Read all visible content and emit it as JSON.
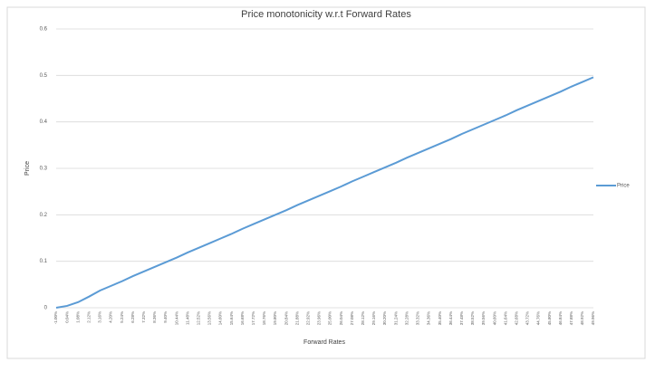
{
  "chart_data": {
    "type": "line",
    "title": "Price monotonicity w.r.t Forward Rates",
    "x_label": "Forward Rates",
    "y_label": "Price",
    "categories": [
      "-1.00%",
      "0.04%",
      "1.08%",
      "2.12%",
      "3.16%",
      "4.20%",
      "5.24%",
      "6.28%",
      "7.32%",
      "8.36%",
      "9.40%",
      "10.44%",
      "11.48%",
      "12.52%",
      "13.56%",
      "14.60%",
      "15.64%",
      "16.68%",
      "17.72%",
      "18.76%",
      "19.80%",
      "20.84%",
      "21.88%",
      "22.92%",
      "23.96%",
      "25.00%",
      "26.04%",
      "27.08%",
      "28.12%",
      "29.16%",
      "30.20%",
      "31.24%",
      "32.28%",
      "33.32%",
      "34.36%",
      "35.40%",
      "36.44%",
      "37.48%",
      "38.52%",
      "39.56%",
      "40.60%",
      "41.64%",
      "42.68%",
      "43.72%",
      "44.76%",
      "45.80%",
      "46.84%",
      "47.88%",
      "48.92%",
      "49.96%"
    ],
    "series": [
      {
        "name": "Price",
        "color": "#5b9bd5",
        "values": [
          0,
          0.004,
          0.012,
          0.024,
          0.037,
          0.047,
          0.057,
          0.068,
          0.078,
          0.088,
          0.098,
          0.108,
          0.119,
          0.129,
          0.139,
          0.149,
          0.159,
          0.17,
          0.18,
          0.19,
          0.2,
          0.21,
          0.221,
          0.231,
          0.241,
          0.251,
          0.261,
          0.272,
          0.282,
          0.292,
          0.302,
          0.312,
          0.323,
          0.333,
          0.343,
          0.353,
          0.363,
          0.374,
          0.384,
          0.394,
          0.404,
          0.414,
          0.425,
          0.435,
          0.445,
          0.455,
          0.465,
          0.476,
          0.486,
          0.496
        ]
      }
    ],
    "ylim": [
      0,
      0.6
    ],
    "yticks": [
      0,
      0.1,
      0.2,
      0.3,
      0.4,
      0.5,
      0.6
    ],
    "grid": true,
    "legend": "right"
  }
}
